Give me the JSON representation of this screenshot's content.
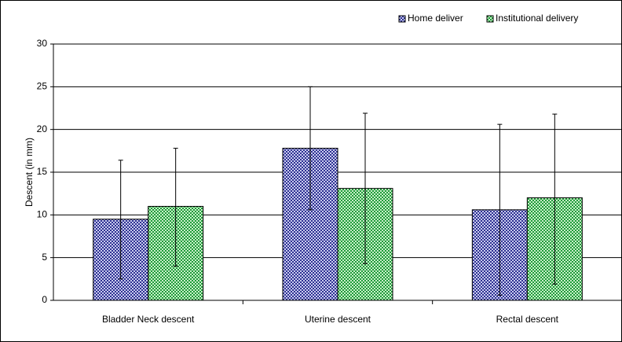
{
  "chart_data": {
    "type": "bar",
    "title": "",
    "xlabel": "",
    "ylabel": "Descent (in mm)",
    "ylim": [
      0,
      30
    ],
    "yticks": [
      0,
      5,
      10,
      15,
      20,
      25,
      30
    ],
    "grid": true,
    "legend_position": "top-right",
    "categories": [
      "Bladder Neck descent",
      "Uterine descent",
      "Rectal descent"
    ],
    "series": [
      {
        "name": "Home deliver",
        "color": "#3b3f9e",
        "values": [
          9.5,
          17.8,
          10.6
        ],
        "error_low": [
          2.5,
          10.6,
          0.6
        ],
        "error_high": [
          16.4,
          25.0,
          20.6
        ]
      },
      {
        "name": "Institutional delivery",
        "color": "#2fa44a",
        "values": [
          11.0,
          13.1,
          12.0
        ],
        "error_low": [
          4.0,
          4.3,
          1.9
        ],
        "error_high": [
          17.8,
          21.9,
          21.8
        ]
      }
    ]
  }
}
